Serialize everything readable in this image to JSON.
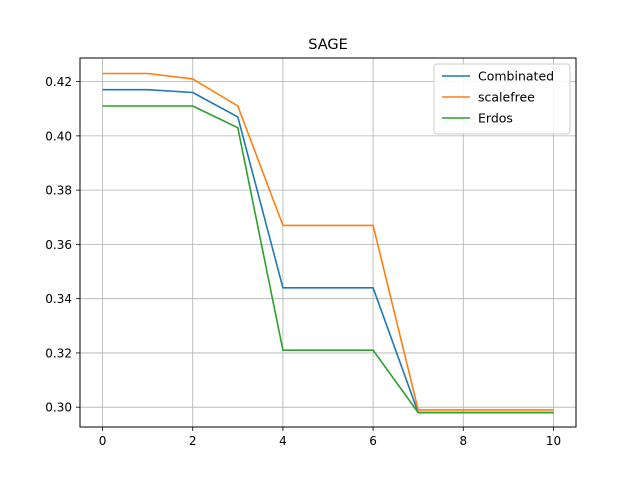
{
  "chart_data": {
    "type": "line",
    "title": "SAGE",
    "xlabel": "",
    "ylabel": "",
    "xlim": [
      -0.5,
      10.5
    ],
    "ylim": [
      0.2927,
      0.4287
    ],
    "xticks": [
      0,
      2,
      4,
      6,
      8,
      10
    ],
    "yticks": [
      0.3,
      0.32,
      0.34,
      0.36,
      0.38,
      0.4,
      0.42
    ],
    "xtick_labels": [
      "0",
      "2",
      "4",
      "6",
      "8",
      "10"
    ],
    "ytick_labels": [
      "0.30",
      "0.32",
      "0.34",
      "0.36",
      "0.38",
      "0.40",
      "0.42"
    ],
    "grid": true,
    "legend_position": "top-right",
    "x": [
      0,
      1,
      2,
      3,
      4,
      5,
      6,
      7,
      8,
      9,
      10
    ],
    "series": [
      {
        "name": "Combinated",
        "color": "#1f77b4",
        "values": [
          0.417,
          0.417,
          0.416,
          0.407,
          0.344,
          0.344,
          0.344,
          0.298,
          0.298,
          0.298,
          0.298
        ]
      },
      {
        "name": "scalefree",
        "color": "#ff7f0e",
        "values": [
          0.423,
          0.423,
          0.421,
          0.411,
          0.367,
          0.367,
          0.367,
          0.299,
          0.299,
          0.299,
          0.299
        ]
      },
      {
        "name": "Erdos",
        "color": "#2ca02c",
        "values": [
          0.411,
          0.411,
          0.411,
          0.403,
          0.321,
          0.321,
          0.321,
          0.298,
          0.298,
          0.298,
          0.298
        ]
      }
    ]
  }
}
